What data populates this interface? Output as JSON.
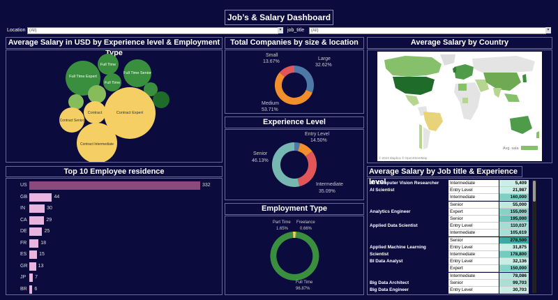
{
  "title": "Job’s & Salary Dashboard",
  "filters": {
    "location_label": "Location",
    "location_value": "(All)",
    "job_title_label": "job_title",
    "job_title_value": "(All)"
  },
  "bubble": {
    "title": "Average Salary in USD by Experience level & Employment Type",
    "labels": {
      "ft_expert": "Full Time Expert",
      "ft": "Full Time",
      "ft_senior": "Full Time Senior",
      "ft2": "Full Time",
      "contract": "Contract",
      "contract_senior": "Contract Senior",
      "contract_expert": "Contract Expert",
      "contract_intermediate": "Contract Intermediate"
    }
  },
  "companies": {
    "title": "Total Companies by size & location",
    "small_label": "Small",
    "small_pct": "13.67%",
    "large_label": "Large",
    "large_pct": "32.62%",
    "medium_label": "Medium",
    "medium_pct": "53.71%"
  },
  "experience": {
    "title": "Experience Level",
    "entry_label": "Entry Level",
    "entry_pct": "14.50%",
    "senior_label": "Senior",
    "senior_pct": "46.13%",
    "inter_label": "Intermediate",
    "inter_pct": "35.09%"
  },
  "employment": {
    "title": "Employment Type",
    "pt_label": "Part Time",
    "pt_pct": "1.65%",
    "fl_label": "Freelance",
    "fl_pct": "0.66%",
    "ft_label": "Full Time",
    "ft_pct": "96.87%"
  },
  "map": {
    "title": "Average Salary by Country",
    "legend_label": "Avg. sala",
    "attribution": "© 2024 Mapbox © OpenStreetMap"
  },
  "residence": {
    "title": "Top 10 Employee residence",
    "max": 332,
    "items": [
      {
        "country": "US",
        "value": 332,
        "label": "332"
      },
      {
        "country": "GB",
        "value": 44,
        "label": "44"
      },
      {
        "country": "IN",
        "value": 30,
        "label": "30"
      },
      {
        "country": "CA",
        "value": 29,
        "label": "29"
      },
      {
        "country": "DE",
        "value": 25,
        "label": "25"
      },
      {
        "country": "FR",
        "value": 18,
        "label": "18"
      },
      {
        "country": "ES",
        "value": 15,
        "label": "15"
      },
      {
        "country": "GR",
        "value": 13,
        "label": "13"
      },
      {
        "country": "JP",
        "value": 7,
        "label": "7"
      },
      {
        "country": "BR",
        "value": 6,
        "label": "6"
      }
    ]
  },
  "jobtable": {
    "title": "Average Salary by Job title & Experience level",
    "rows": [
      {
        "job": "3D Computer Vision Researcher",
        "level": "Intermediate",
        "value": "5,409",
        "shade": "#cdeee6"
      },
      {
        "job": "AI Scientist",
        "level": "Entry Level",
        "value": "21,987",
        "shade": "#cdeee6"
      },
      {
        "job": "",
        "level": "Intermediate",
        "value": "160,000",
        "shade": "#7fcfc4"
      },
      {
        "job": "",
        "level": "Senior",
        "value": "55,000",
        "shade": "#bfe8df"
      },
      {
        "job": "Analytics Engineer",
        "level": "Expert",
        "value": "155,000",
        "shade": "#85d2c7"
      },
      {
        "job": "",
        "level": "Senior",
        "value": "195,000",
        "shade": "#6cc6bb"
      },
      {
        "job": "Applied Data Scientist",
        "level": "Entry Level",
        "value": "110,037",
        "shade": "#a3ddd3"
      },
      {
        "job": "",
        "level": "Intermediate",
        "value": "105,619",
        "shade": "#a6dfd5"
      },
      {
        "job": "",
        "level": "Senior",
        "value": "278,500",
        "shade": "#3aa9a5"
      },
      {
        "job": "Applied Machine Learning",
        "level": "Entry Level",
        "value": "31,875",
        "shade": "#c9ece4"
      },
      {
        "job": "Scientist",
        "level": "Intermediate",
        "value": "178,800",
        "shade": "#76cbc0"
      },
      {
        "job": "BI Data Analyst",
        "level": "Entry Level",
        "value": "32,136",
        "shade": "#c9ece4"
      },
      {
        "job": "",
        "level": "Expert",
        "value": "150,000",
        "shade": "#88d3c8"
      },
      {
        "job": "",
        "level": "Intermediate",
        "value": "78,086",
        "shade": "#b5e4da"
      },
      {
        "job": "Big Data Architect",
        "level": "Senior",
        "value": "99,703",
        "shade": "#aadfd5"
      },
      {
        "job": "Big Data Engineer",
        "level": "Entry Level",
        "value": "30,703",
        "shade": "#c9ece4"
      }
    ]
  },
  "colors": {
    "background": "#0b0b3d",
    "green": "#3a8f3e",
    "lightgreen": "#86bd5a",
    "darkgreen": "#1f6b2a",
    "yellow": "#f5cf64",
    "blue": "#4e79a7",
    "orange": "#f28e2b",
    "red": "#e15759",
    "teal": "#76b7b2",
    "bar": "#e8b4e0",
    "bar_top": "#8a4a7e"
  }
}
